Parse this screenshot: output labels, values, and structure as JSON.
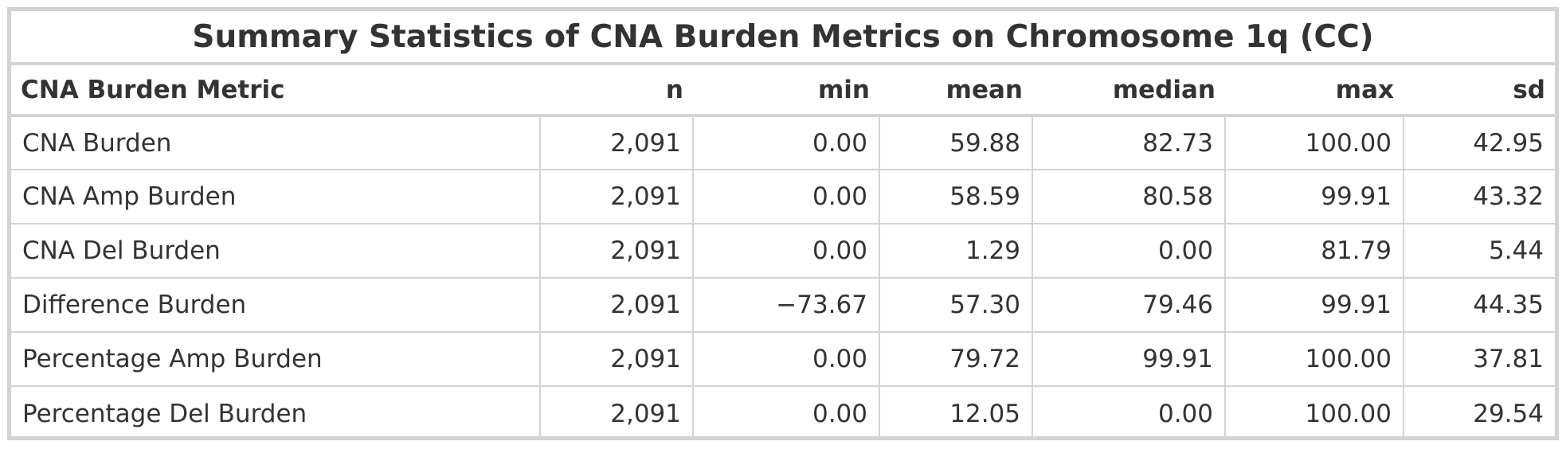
{
  "title": "Summary Statistics of CNA Burden Metrics on Chromosome 1q (CC)",
  "columns": [
    "CNA Burden Metric",
    "n",
    "min",
    "mean",
    "median",
    "max",
    "sd"
  ],
  "rows": [
    [
      "CNA Burden",
      "2,091",
      "0.00",
      "59.88",
      "82.73",
      "100.00",
      "42.95"
    ],
    [
      "CNA Amp Burden",
      "2,091",
      "0.00",
      "58.59",
      "80.58",
      "99.91",
      "43.32"
    ],
    [
      "CNA Del Burden",
      "2,091",
      "0.00",
      "1.29",
      "0.00",
      "81.79",
      "5.44"
    ],
    [
      "Difference Burden",
      "2,091",
      "−73.67",
      "57.30",
      "79.46",
      "99.91",
      "44.35"
    ],
    [
      "Percentage Amp Burden",
      "2,091",
      "0.00",
      "79.72",
      "99.91",
      "100.00",
      "37.81"
    ],
    [
      "Percentage Del Burden",
      "2,091",
      "0.00",
      "12.05",
      "0.00",
      "100.00",
      "29.54"
    ]
  ]
}
